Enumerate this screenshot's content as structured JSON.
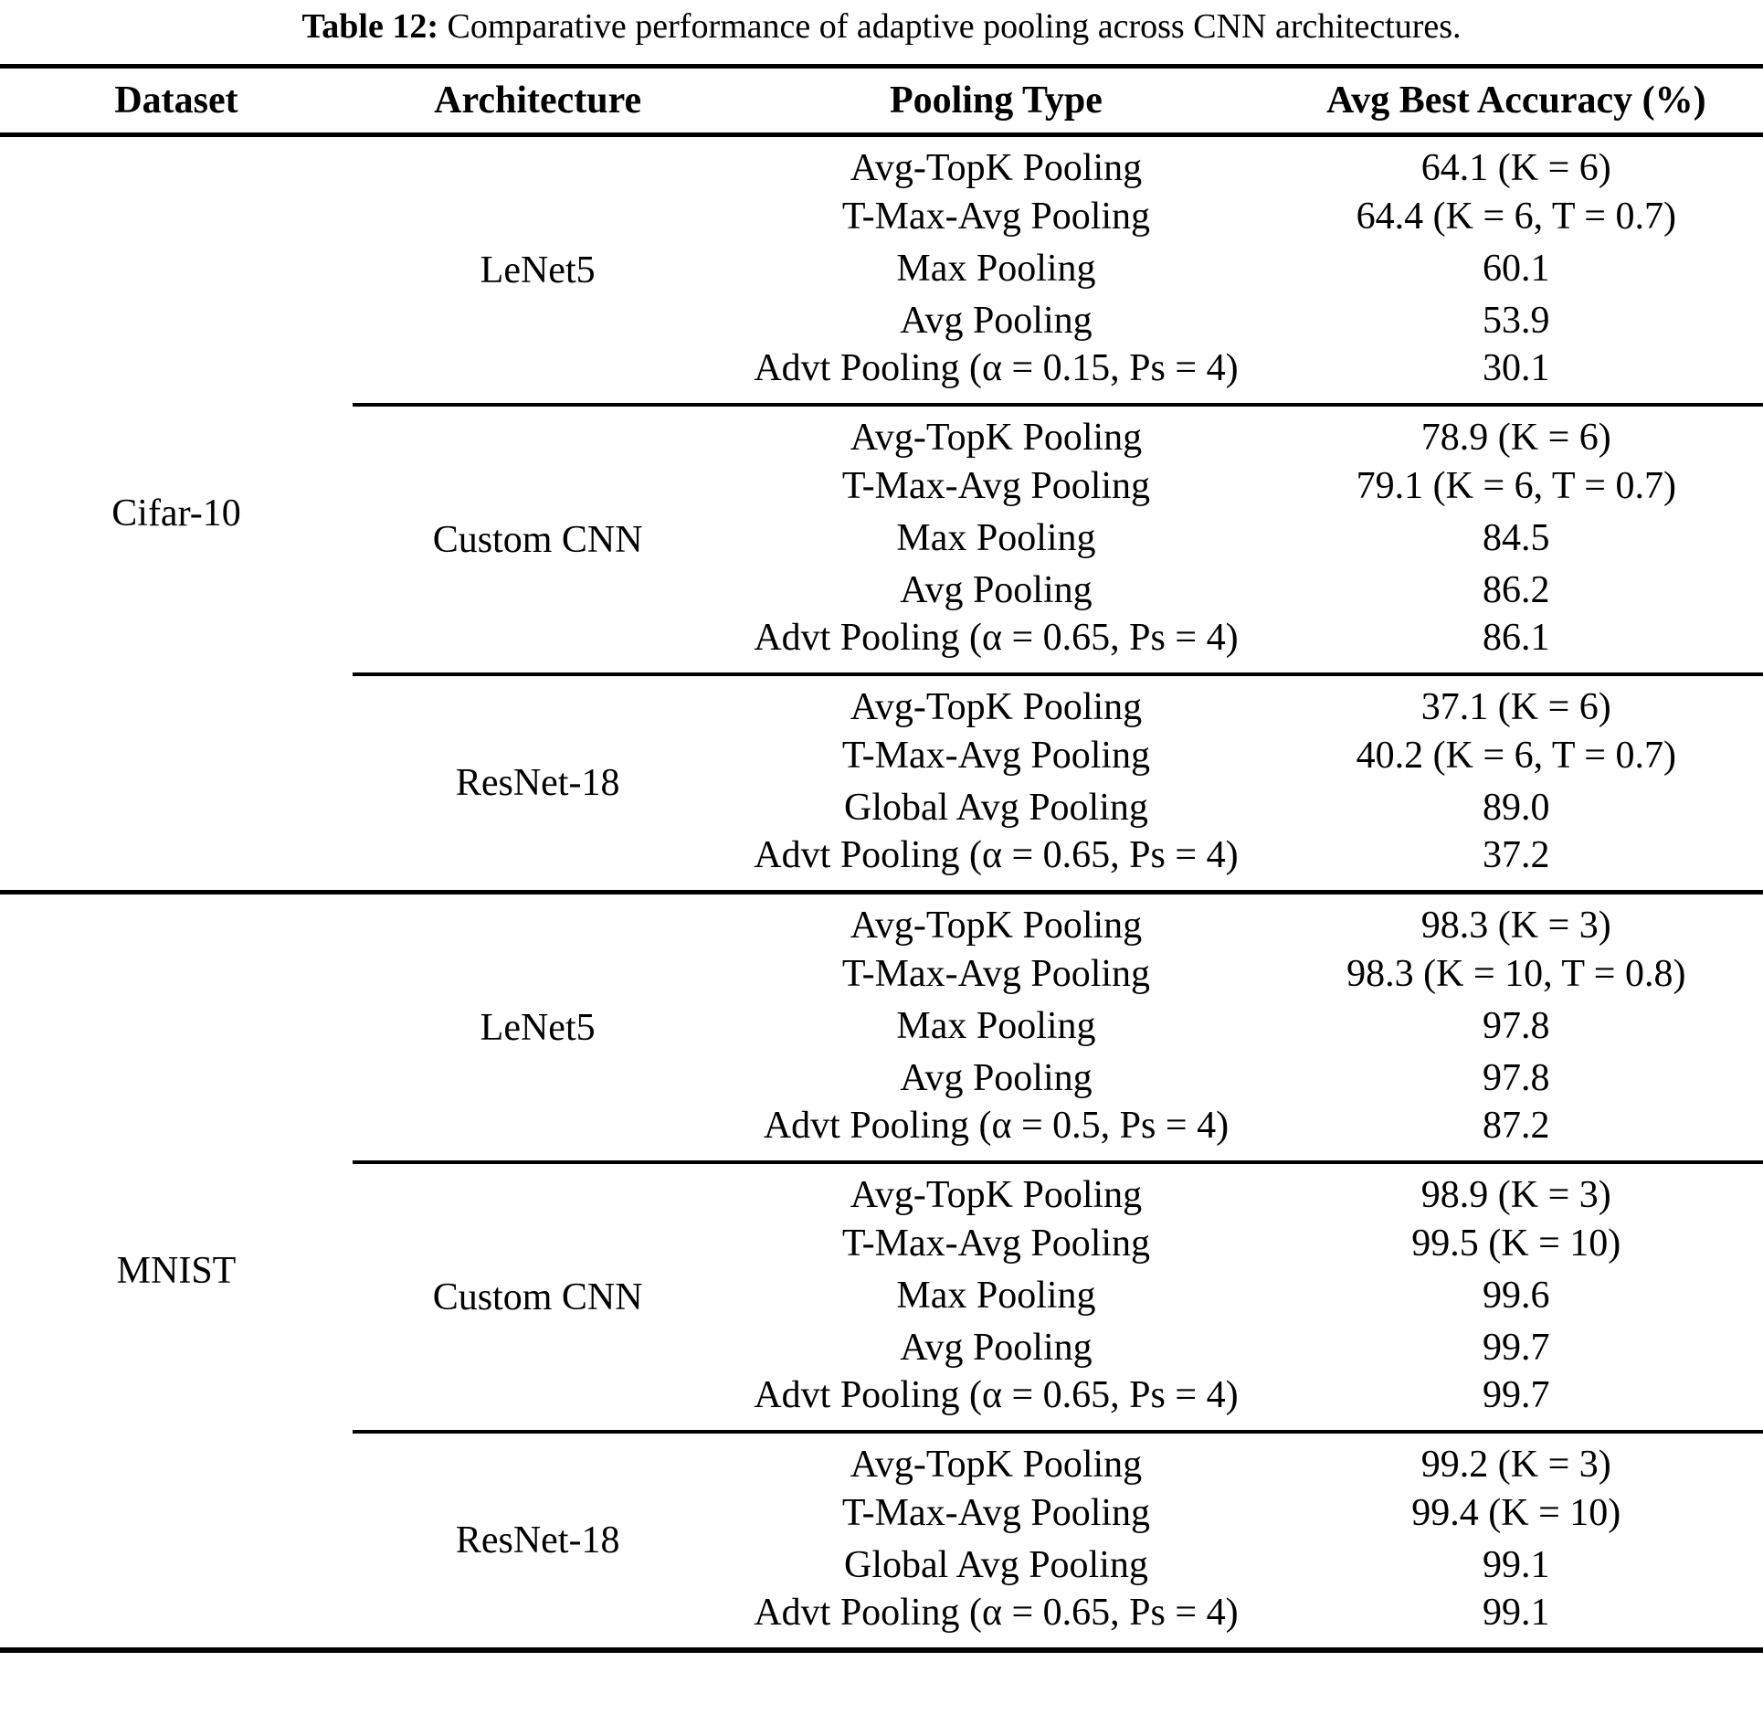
{
  "caption": {
    "label": "Table 12:",
    "text": " Comparative performance of adaptive pooling across CNN architectures."
  },
  "table": {
    "columns": [
      "Dataset",
      "Architecture",
      "Pooling Type",
      "Avg Best Accuracy (%)"
    ],
    "datasets": [
      {
        "name": "Cifar-10",
        "architectures": [
          {
            "name": "LeNet5",
            "rows": [
              {
                "pooling": "Avg-TopK Pooling",
                "accuracy": "64.1 (K = 6)"
              },
              {
                "pooling": "T-Max-Avg Pooling",
                "accuracy": "64.4 (K = 6, T = 0.7)"
              },
              {
                "pooling": "Max Pooling",
                "accuracy": "60.1"
              },
              {
                "pooling": "Avg Pooling",
                "accuracy": "53.9"
              },
              {
                "pooling": "Advt Pooling (α = 0.15, Ps = 4)",
                "accuracy": "30.1"
              }
            ]
          },
          {
            "name": "Custom CNN",
            "rows": [
              {
                "pooling": "Avg-TopK Pooling",
                "accuracy": "78.9 (K = 6)"
              },
              {
                "pooling": "T-Max-Avg Pooling",
                "accuracy": "79.1 (K = 6, T = 0.7)"
              },
              {
                "pooling": "Max Pooling",
                "accuracy": "84.5"
              },
              {
                "pooling": "Avg Pooling",
                "accuracy": "86.2"
              },
              {
                "pooling": "Advt Pooling (α = 0.65, Ps = 4)",
                "accuracy": "86.1"
              }
            ]
          },
          {
            "name": "ResNet-18",
            "rows": [
              {
                "pooling": "Avg-TopK Pooling",
                "accuracy": "37.1 (K = 6)"
              },
              {
                "pooling": "T-Max-Avg Pooling",
                "accuracy": "40.2 (K = 6, T = 0.7)"
              },
              {
                "pooling": "Global Avg Pooling",
                "accuracy": "89.0"
              },
              {
                "pooling": "Advt Pooling (α = 0.65, Ps = 4)",
                "accuracy": "37.2"
              }
            ]
          }
        ]
      },
      {
        "name": "MNIST",
        "architectures": [
          {
            "name": "LeNet5",
            "rows": [
              {
                "pooling": "Avg-TopK Pooling",
                "accuracy": "98.3 (K = 3)"
              },
              {
                "pooling": "T-Max-Avg Pooling",
                "accuracy": "98.3 (K = 10, T = 0.8)"
              },
              {
                "pooling": "Max Pooling",
                "accuracy": "97.8"
              },
              {
                "pooling": "Avg Pooling",
                "accuracy": "97.8"
              },
              {
                "pooling": "Advt Pooling (α = 0.5, Ps = 4)",
                "accuracy": "87.2"
              }
            ]
          },
          {
            "name": "Custom CNN",
            "rows": [
              {
                "pooling": "Avg-TopK Pooling",
                "accuracy": "98.9 (K = 3)"
              },
              {
                "pooling": "T-Max-Avg Pooling",
                "accuracy": "99.5 (K = 10)"
              },
              {
                "pooling": "Max Pooling",
                "accuracy": "99.6"
              },
              {
                "pooling": "Avg Pooling",
                "accuracy": "99.7"
              },
              {
                "pooling": "Advt Pooling (α = 0.65, Ps = 4)",
                "accuracy": "99.7"
              }
            ]
          },
          {
            "name": "ResNet-18",
            "rows": [
              {
                "pooling": "Avg-TopK Pooling",
                "accuracy": "99.2 (K = 3)"
              },
              {
                "pooling": "T-Max-Avg Pooling",
                "accuracy": "99.4 (K = 10)"
              },
              {
                "pooling": "Global Avg Pooling",
                "accuracy": "99.1"
              },
              {
                "pooling": "Advt Pooling (α = 0.65, Ps = 4)",
                "accuracy": "99.1"
              }
            ]
          }
        ]
      }
    ]
  },
  "colors": {
    "text": "#000000",
    "background": "#ffffff",
    "rule": "#000000"
  }
}
